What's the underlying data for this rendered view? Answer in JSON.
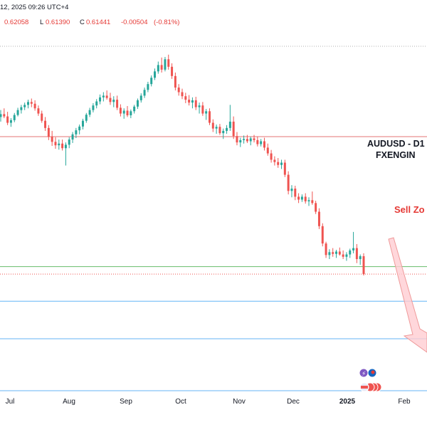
{
  "header": {
    "date_text": "12, 2025 09:26 UTC+4",
    "ohlc_prefix": "0.62058",
    "low_label": "L",
    "low_value": "0.61390",
    "close_label": "C",
    "close_value": "0.61441",
    "change_value": "-0.00504",
    "change_pct": "(-0.81%)",
    "value_color": "#e53935"
  },
  "annotations": {
    "symbol": "AUDUSD - D1",
    "source": "FXENGIN",
    "zone": "Sell Zo",
    "zone_color": "#e53935"
  },
  "colors": {
    "up": "#26a69a",
    "down": "#ef5350",
    "resistance_line": "#e57373",
    "support_line": "#66bb6a",
    "target_line": "#64b5f6",
    "arrow_fill": "#ffcdd2",
    "arrow_stroke": "#ef9a9a"
  },
  "chart_data": {
    "type": "candlestick",
    "title": "AUDUSD - D1",
    "xlabel": "",
    "ylabel": "",
    "x_ticks": [
      "Jul",
      "Aug",
      "Sep",
      "Oct",
      "Nov",
      "Dec",
      "2025",
      "Feb"
    ],
    "ylim": [
      0.575,
      0.697
    ],
    "levels": [
      {
        "type": "resistance",
        "value": 0.662
      },
      {
        "type": "support",
        "value": 0.617
      },
      {
        "type": "target",
        "value": 0.605
      },
      {
        "type": "target",
        "value": 0.592
      },
      {
        "type": "target",
        "value": 0.574
      }
    ],
    "series": [
      {
        "name": "AUDUSD",
        "candles": [
          [
            0.6688,
            0.6712,
            0.6672,
            0.6698
          ],
          [
            0.6698,
            0.6718,
            0.6684,
            0.669
          ],
          [
            0.669,
            0.6706,
            0.666,
            0.6668
          ],
          [
            0.6668,
            0.6684,
            0.6654,
            0.6677
          ],
          [
            0.6677,
            0.6702,
            0.667,
            0.6695
          ],
          [
            0.6695,
            0.672,
            0.669,
            0.6712
          ],
          [
            0.6712,
            0.673,
            0.67,
            0.6722
          ],
          [
            0.6722,
            0.6738,
            0.6712,
            0.673
          ],
          [
            0.673,
            0.6748,
            0.6718,
            0.674
          ],
          [
            0.674,
            0.6752,
            0.6722,
            0.6734
          ],
          [
            0.6734,
            0.6746,
            0.671,
            0.6718
          ],
          [
            0.6718,
            0.6728,
            0.6692,
            0.67
          ],
          [
            0.67,
            0.671,
            0.6668,
            0.6675
          ],
          [
            0.6675,
            0.6688,
            0.664,
            0.665
          ],
          [
            0.665,
            0.666,
            0.6608,
            0.662
          ],
          [
            0.662,
            0.664,
            0.6588,
            0.6602
          ],
          [
            0.6602,
            0.6618,
            0.6578,
            0.659
          ],
          [
            0.659,
            0.661,
            0.6575,
            0.6596
          ],
          [
            0.6596,
            0.661,
            0.6572,
            0.658
          ],
          [
            0.658,
            0.66,
            0.652,
            0.6592
          ],
          [
            0.6592,
            0.6618,
            0.658,
            0.661
          ],
          [
            0.661,
            0.6636,
            0.6598,
            0.6628
          ],
          [
            0.6628,
            0.665,
            0.6615,
            0.6642
          ],
          [
            0.6642,
            0.6662,
            0.6628,
            0.6655
          ],
          [
            0.6655,
            0.6682,
            0.6645,
            0.6675
          ],
          [
            0.6675,
            0.6702,
            0.6668,
            0.6696
          ],
          [
            0.6696,
            0.672,
            0.6688,
            0.6712
          ],
          [
            0.6712,
            0.6736,
            0.6704,
            0.6728
          ],
          [
            0.6728,
            0.675,
            0.6718,
            0.6742
          ],
          [
            0.6742,
            0.6766,
            0.6732,
            0.6756
          ],
          [
            0.6756,
            0.6774,
            0.6742,
            0.6762
          ],
          [
            0.6762,
            0.678,
            0.6748,
            0.6754
          ],
          [
            0.6754,
            0.6772,
            0.673,
            0.674
          ],
          [
            0.674,
            0.676,
            0.6722,
            0.6748
          ],
          [
            0.6748,
            0.6762,
            0.6712,
            0.672
          ],
          [
            0.672,
            0.6732,
            0.669,
            0.67
          ],
          [
            0.67,
            0.6718,
            0.6682,
            0.671
          ],
          [
            0.671,
            0.6726,
            0.6688,
            0.6694
          ],
          [
            0.6694,
            0.6714,
            0.6684,
            0.6708
          ],
          [
            0.6708,
            0.673,
            0.67,
            0.6724
          ],
          [
            0.6724,
            0.6752,
            0.6716,
            0.6746
          ],
          [
            0.6746,
            0.677,
            0.6738,
            0.6762
          ],
          [
            0.6762,
            0.679,
            0.6754,
            0.6782
          ],
          [
            0.6782,
            0.681,
            0.6774,
            0.6802
          ],
          [
            0.6802,
            0.6832,
            0.6794,
            0.6824
          ],
          [
            0.6824,
            0.6856,
            0.6816,
            0.6846
          ],
          [
            0.6846,
            0.688,
            0.6838,
            0.6868
          ],
          [
            0.6868,
            0.6894,
            0.6842,
            0.6852
          ],
          [
            0.6852,
            0.6896,
            0.6846,
            0.6888
          ],
          [
            0.6888,
            0.6904,
            0.6852,
            0.6862
          ],
          [
            0.6862,
            0.6874,
            0.682,
            0.683
          ],
          [
            0.683,
            0.6842,
            0.678,
            0.679
          ],
          [
            0.679,
            0.6802,
            0.6762,
            0.6774
          ],
          [
            0.6774,
            0.6786,
            0.675,
            0.676
          ],
          [
            0.676,
            0.6772,
            0.6736,
            0.6748
          ],
          [
            0.6748,
            0.6764,
            0.6728,
            0.6738
          ],
          [
            0.6738,
            0.6756,
            0.6718,
            0.6746
          ],
          [
            0.6746,
            0.6758,
            0.6712,
            0.6722
          ],
          [
            0.6722,
            0.6738,
            0.67,
            0.6728
          ],
          [
            0.6728,
            0.674,
            0.6692,
            0.67
          ],
          [
            0.67,
            0.6716,
            0.6678,
            0.6708
          ],
          [
            0.6708,
            0.6718,
            0.666,
            0.6668
          ],
          [
            0.6668,
            0.668,
            0.6636,
            0.6648
          ],
          [
            0.6648,
            0.6662,
            0.663,
            0.6654
          ],
          [
            0.6654,
            0.6664,
            0.6626,
            0.6632
          ],
          [
            0.6632,
            0.6648,
            0.6612,
            0.664
          ],
          [
            0.664,
            0.666,
            0.663,
            0.665
          ],
          [
            0.665,
            0.673,
            0.664,
            0.6672
          ],
          [
            0.6672,
            0.669,
            0.6612,
            0.6622
          ],
          [
            0.6622,
            0.6636,
            0.659,
            0.66
          ],
          [
            0.66,
            0.6616,
            0.6584,
            0.6608
          ],
          [
            0.6608,
            0.6624,
            0.6596,
            0.6612
          ],
          [
            0.6612,
            0.6626,
            0.6598,
            0.6604
          ],
          [
            0.6604,
            0.662,
            0.659,
            0.6614
          ],
          [
            0.6614,
            0.6626,
            0.66,
            0.6608
          ],
          [
            0.6608,
            0.662,
            0.6586,
            0.6594
          ],
          [
            0.6594,
            0.6612,
            0.6586,
            0.6604
          ],
          [
            0.6604,
            0.6616,
            0.6572,
            0.6582
          ],
          [
            0.6582,
            0.6596,
            0.6554,
            0.6562
          ],
          [
            0.6562,
            0.6574,
            0.653,
            0.654
          ],
          [
            0.654,
            0.6552,
            0.652,
            0.6532
          ],
          [
            0.6532,
            0.6546,
            0.6512,
            0.6522
          ],
          [
            0.6522,
            0.654,
            0.6508,
            0.653
          ],
          [
            0.653,
            0.654,
            0.648,
            0.6488
          ],
          [
            0.6488,
            0.65,
            0.642,
            0.6432
          ],
          [
            0.6432,
            0.6452,
            0.641,
            0.644
          ],
          [
            0.644,
            0.645,
            0.64,
            0.6412
          ],
          [
            0.6412,
            0.6424,
            0.639,
            0.6402
          ],
          [
            0.6402,
            0.642,
            0.6394,
            0.6412
          ],
          [
            0.6412,
            0.6424,
            0.6388,
            0.6396
          ],
          [
            0.6396,
            0.641,
            0.638,
            0.64
          ],
          [
            0.64,
            0.643,
            0.6384,
            0.639
          ],
          [
            0.639,
            0.6398,
            0.6352,
            0.636
          ],
          [
            0.636,
            0.6372,
            0.63,
            0.631
          ],
          [
            0.631,
            0.632,
            0.624,
            0.625
          ],
          [
            0.625,
            0.6256,
            0.62,
            0.621
          ],
          [
            0.621,
            0.623,
            0.6196,
            0.622
          ],
          [
            0.622,
            0.6234,
            0.6204,
            0.6214
          ],
          [
            0.6214,
            0.6228,
            0.62,
            0.6222
          ],
          [
            0.6222,
            0.6236,
            0.6208,
            0.6212
          ],
          [
            0.6212,
            0.6226,
            0.6196,
            0.6204
          ],
          [
            0.6204,
            0.622,
            0.619,
            0.6212
          ],
          [
            0.6212,
            0.6232,
            0.62,
            0.6226
          ],
          [
            0.6226,
            0.629,
            0.6216,
            0.6234
          ],
          [
            0.6234,
            0.6248,
            0.6182,
            0.6196
          ],
          [
            0.6196,
            0.6212,
            0.6176,
            0.6206
          ],
          [
            0.6206,
            0.6216,
            0.6139,
            0.6144
          ]
        ]
      }
    ]
  }
}
